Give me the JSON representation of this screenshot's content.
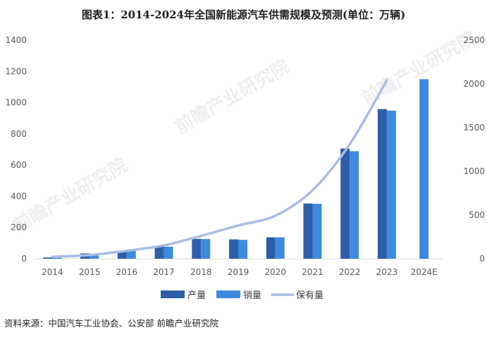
{
  "title": "图表1：2014-2024年全国新能源汽车供需规模及预测(单位：万辆)",
  "source": "资料来源：中国汽车工业协会、公安部 前瞻产业研究院",
  "watermark": "前瞻产业研究院",
  "colors": {
    "production": "#2f5ea8",
    "sales": "#3d8be0",
    "ownership": "#a9bde6",
    "axis": "#d9d9d9",
    "text": "#595959"
  },
  "chart_data": {
    "type": "bar",
    "title": "图表1：2014-2024年全国新能源汽车供需规模及预测(单位：万辆)",
    "categories": [
      "2014",
      "2015",
      "2016",
      "2017",
      "2018",
      "2019",
      "2020",
      "2021",
      "2022",
      "2023",
      "2024E"
    ],
    "series": [
      {
        "name": "产量",
        "type": "bar",
        "axis": "left",
        "values": [
          8,
          34,
          52,
          79,
          127,
          124,
          137,
          354,
          706,
          959,
          null
        ]
      },
      {
        "name": "销量",
        "type": "bar",
        "axis": "left",
        "values": [
          7,
          33,
          51,
          77,
          126,
          121,
          137,
          352,
          689,
          949,
          1150
        ]
      },
      {
        "name": "保有量",
        "type": "line",
        "axis": "right",
        "values": [
          22,
          42,
          91,
          153,
          261,
          381,
          492,
          784,
          1310,
          2041,
          null
        ]
      }
    ],
    "y_left": {
      "min": 0,
      "max": 1400,
      "ticks": [
        0,
        200,
        400,
        600,
        800,
        1000,
        1200,
        1400
      ]
    },
    "y_right": {
      "min": 0,
      "max": 2500,
      "ticks": [
        0,
        500,
        1000,
        1500,
        2000,
        2500
      ]
    },
    "grid": false,
    "legend_position": "bottom"
  }
}
